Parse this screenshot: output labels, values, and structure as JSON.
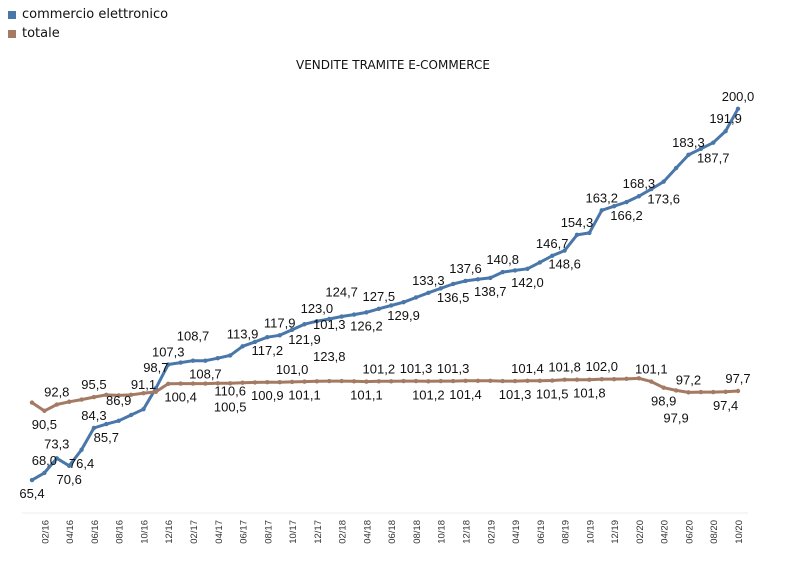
{
  "chart_data": {
    "type": "line",
    "title": "VENDITE TRAMITE E-COMMERCE",
    "legend_position": "top-left",
    "grid": false,
    "ylim": [
      60,
      205
    ],
    "x": [
      "01/16",
      "02/16",
      "03/16",
      "04/16",
      "05/16",
      "06/16",
      "07/16",
      "08/16",
      "09/16",
      "10/16",
      "11/16",
      "12/16",
      "01/17",
      "02/17",
      "03/17",
      "04/17",
      "05/17",
      "06/17",
      "07/17",
      "08/17",
      "09/17",
      "10/17",
      "11/17",
      "12/17",
      "01/18",
      "02/18",
      "03/18",
      "04/18",
      "05/18",
      "06/18",
      "07/18",
      "08/18",
      "09/18",
      "10/18",
      "11/18",
      "12/18",
      "01/19",
      "02/19",
      "03/19",
      "04/19",
      "05/19",
      "06/19",
      "07/19",
      "08/19",
      "09/19",
      "10/19",
      "11/19",
      "12/19",
      "01/20",
      "02/20",
      "03/20",
      "04/20",
      "05/20",
      "06/20",
      "07/20",
      "08/20",
      "09/20",
      "10/20"
    ],
    "x_tick_labels": [
      "02/16",
      "04/16",
      "06/16",
      "08/16",
      "10/16",
      "12/16",
      "02/17",
      "04/17",
      "06/17",
      "08/17",
      "10/17",
      "12/17",
      "02/18",
      "04/18",
      "06/18",
      "08/18",
      "10/18",
      "12/18",
      "02/19",
      "04/19",
      "06/19",
      "08/19",
      "10/19",
      "12/19",
      "02/20",
      "04/20",
      "06/20",
      "08/20",
      "10/20"
    ],
    "series": [
      {
        "name": "commercio elettronico",
        "color": "#4a77aa",
        "values": [
          65.4,
          68.0,
          73.3,
          70.6,
          76.4,
          84.3,
          85.7,
          86.9,
          89.0,
          91.1,
          98.7,
          107.3,
          108.0,
          108.7,
          108.7,
          109.6,
          110.6,
          113.9,
          115.5,
          117.2,
          117.9,
          119.9,
          121.9,
          123.0,
          123.8,
          124.7,
          125.4,
          126.2,
          127.5,
          128.7,
          129.9,
          131.6,
          133.3,
          134.9,
          136.5,
          137.6,
          138.2,
          138.7,
          140.8,
          141.4,
          142.0,
          144.3,
          146.7,
          148.6,
          154.3,
          155.0,
          163.2,
          164.7,
          166.2,
          168.3,
          170.9,
          173.6,
          178.5,
          183.3,
          185.5,
          187.7,
          191.9,
          200.0
        ],
        "data_labels": [
          "below",
          "above",
          "above",
          "below",
          "below",
          "above",
          "below",
          "above",
          null,
          "above",
          "above",
          "above",
          null,
          "above",
          "below",
          null,
          "below",
          "above",
          null,
          "below",
          "above",
          null,
          "below",
          "above",
          "below",
          "above",
          null,
          "below",
          "above",
          null,
          "below",
          null,
          "above",
          null,
          "below",
          "above",
          null,
          "below",
          "above",
          null,
          "below",
          null,
          "above",
          "below",
          "above",
          null,
          "above",
          null,
          "below",
          "above",
          null,
          "below",
          null,
          "above",
          null,
          "below",
          "above",
          "above"
        ]
      },
      {
        "name": "totale",
        "color": "#a47b62",
        "values": [
          93.5,
          90.5,
          92.8,
          93.8,
          94.6,
          95.5,
          96.3,
          96.1,
          96.3,
          96.9,
          97.4,
          100.3,
          100.4,
          100.4,
          100.4,
          100.5,
          100.5,
          100.7,
          100.8,
          100.9,
          100.9,
          101.0,
          101.1,
          101.2,
          101.3,
          101.3,
          101.2,
          101.1,
          101.2,
          101.2,
          101.3,
          101.3,
          101.2,
          101.3,
          101.3,
          101.4,
          101.4,
          101.4,
          101.3,
          101.3,
          101.4,
          101.4,
          101.5,
          101.8,
          101.8,
          101.8,
          102.0,
          102.0,
          102.1,
          102.3,
          101.1,
          98.9,
          97.9,
          97.2,
          97.3,
          97.3,
          97.4,
          97.7
        ],
        "data_labels": [
          null,
          "below",
          "above",
          null,
          null,
          "above",
          null,
          null,
          null,
          null,
          null,
          null,
          "below",
          null,
          null,
          null,
          "below",
          null,
          null,
          "below",
          null,
          "above",
          "below",
          null,
          "above",
          null,
          null,
          "below",
          "above",
          null,
          null,
          "above",
          "below",
          null,
          "above",
          "below",
          null,
          null,
          null,
          "below",
          "above",
          null,
          "below",
          "above",
          null,
          "below",
          "above",
          null,
          null,
          null,
          "above",
          "below",
          "below",
          "above",
          null,
          null,
          "below",
          "above"
        ]
      }
    ]
  }
}
